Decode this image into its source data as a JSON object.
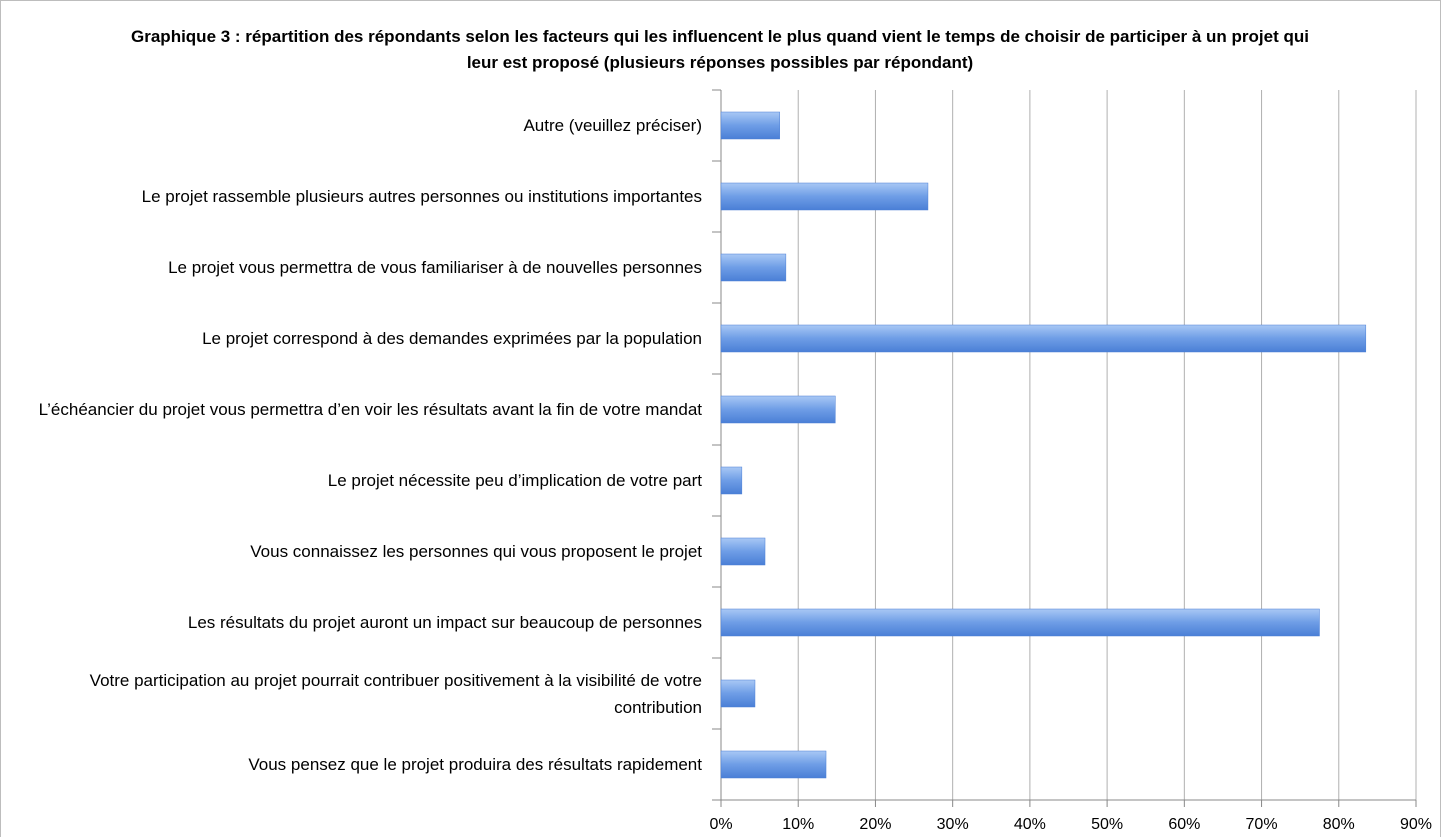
{
  "chart_data": {
    "type": "bar",
    "orientation": "horizontal",
    "title": "Graphique 3 : répartition des répondants selon les facteurs qui les influencent le plus quand vient le temps de choisir de participer à un projet qui leur est proposé (plusieurs réponses possibles par répondant)",
    "categories": [
      "Autre (veuillez préciser)",
      "Le projet rassemble plusieurs autres personnes ou institutions importantes",
      "Le projet vous permettra de vous familiariser à de nouvelles personnes",
      "Le projet correspond à des demandes exprimées par la population",
      "L’échéancier du projet vous permettra d’en voir les résultats avant la fin de votre mandat",
      "Le projet nécessite peu d’implication de votre part",
      "Vous connaissez les personnes qui vous proposent le projet",
      "Les résultats du projet auront un impact sur beaucoup de personnes",
      "Votre participation au projet pourrait contribuer positivement à la visibilité de votre contribution",
      "Vous pensez que le projet produira des résultats rapidement"
    ],
    "values": [
      7.6,
      26.8,
      8.4,
      83.5,
      14.8,
      2.7,
      5.7,
      77.5,
      4.4,
      13.6
    ],
    "color": "#5b8ee0",
    "xlim": [
      0,
      90
    ],
    "xticks": [
      {
        "value": 0,
        "label": "0%"
      },
      {
        "value": 10,
        "label": "10%"
      },
      {
        "value": 20,
        "label": "20%"
      },
      {
        "value": 30,
        "label": "30%"
      },
      {
        "value": 40,
        "label": "40%"
      },
      {
        "value": 50,
        "label": "50%"
      },
      {
        "value": 60,
        "label": "60%"
      },
      {
        "value": 70,
        "label": "70%"
      },
      {
        "value": 80,
        "label": "80%"
      },
      {
        "value": 90,
        "label": "90%"
      }
    ],
    "grid": true
  }
}
